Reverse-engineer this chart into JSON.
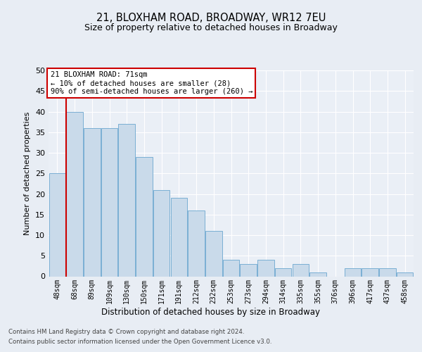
{
  "title_line1": "21, BLOXHAM ROAD, BROADWAY, WR12 7EU",
  "title_line2": "Size of property relative to detached houses in Broadway",
  "xlabel": "Distribution of detached houses by size in Broadway",
  "ylabel": "Number of detached properties",
  "categories": [
    "48sqm",
    "68sqm",
    "89sqm",
    "109sqm",
    "130sqm",
    "150sqm",
    "171sqm",
    "191sqm",
    "212sqm",
    "232sqm",
    "253sqm",
    "273sqm",
    "294sqm",
    "314sqm",
    "335sqm",
    "355sqm",
    "376sqm",
    "396sqm",
    "417sqm",
    "437sqm",
    "458sqm"
  ],
  "values": [
    25,
    40,
    36,
    36,
    37,
    29,
    21,
    19,
    16,
    11,
    4,
    3,
    4,
    2,
    3,
    1,
    0,
    2,
    2,
    2,
    1
  ],
  "bar_color": "#c9daea",
  "bar_edge_color": "#7aafd4",
  "ylim": [
    0,
    50
  ],
  "yticks": [
    0,
    5,
    10,
    15,
    20,
    25,
    30,
    35,
    40,
    45,
    50
  ],
  "annotation_title": "21 BLOXHAM ROAD: 71sqm",
  "annotation_line1": "← 10% of detached houses are smaller (28)",
  "annotation_line2": "90% of semi-detached houses are larger (260) →",
  "annotation_box_color": "#ffffff",
  "annotation_box_edge": "#cc0000",
  "vline_color": "#cc0000",
  "footer_line1": "Contains HM Land Registry data © Crown copyright and database right 2024.",
  "footer_line2": "Contains public sector information licensed under the Open Government Licence v3.0.",
  "bg_color": "#e8edf4",
  "plot_bg_color": "#eaeff6"
}
